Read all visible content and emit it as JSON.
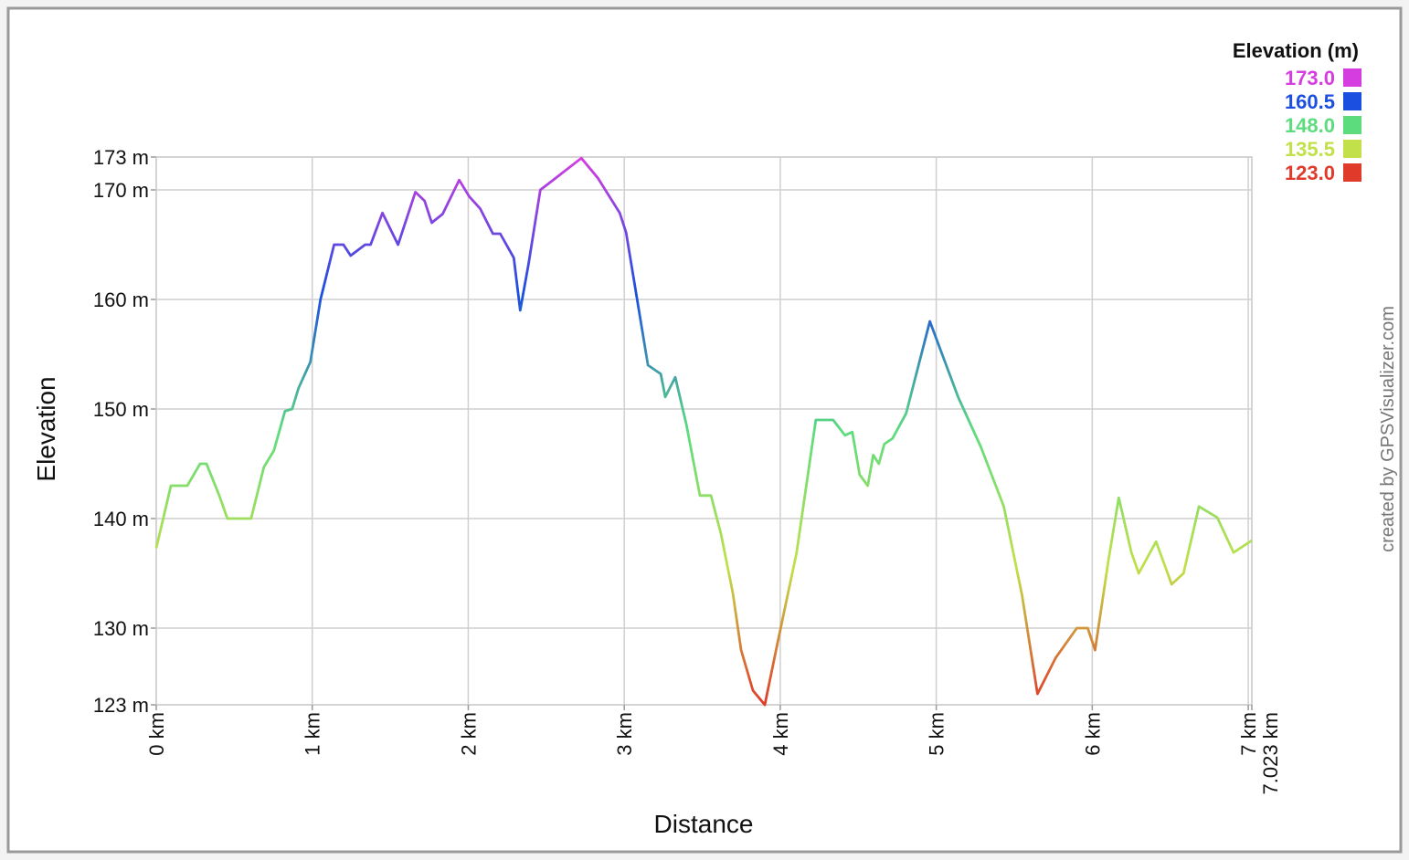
{
  "chart_data": {
    "type": "line",
    "x_label": "Distance",
    "y_label": "Elevation",
    "credit": "created by GPSVisualizer.com",
    "legend_title": "Elevation (m)",
    "color_scale": [
      {
        "value": 173,
        "label": "173.0",
        "color": "#d63de0"
      },
      {
        "value": 160.5,
        "label": "160.5",
        "color": "#1a4fe0"
      },
      {
        "value": 148,
        "label": "148.0",
        "color": "#5ddc7e"
      },
      {
        "value": 135.5,
        "label": "135.5",
        "color": "#c2e04a"
      },
      {
        "value": 123,
        "label": "123.0",
        "color": "#e03a2a"
      }
    ],
    "xlim": [
      0,
      7.023
    ],
    "ylim": [
      123,
      173
    ],
    "xticks": [
      {
        "value": 0,
        "label": "0 km"
      },
      {
        "value": 1,
        "label": "1 km"
      },
      {
        "value": 2,
        "label": "2 km"
      },
      {
        "value": 3,
        "label": "3 km"
      },
      {
        "value": 4,
        "label": "4 km"
      },
      {
        "value": 5,
        "label": "5 km"
      },
      {
        "value": 6,
        "label": "6 km"
      },
      {
        "value": 7,
        "label": "7 km"
      },
      {
        "value": 7.023,
        "label": "7.023 km"
      }
    ],
    "yticks": [
      {
        "value": 123,
        "label": "123 m"
      },
      {
        "value": 130,
        "label": "130 m"
      },
      {
        "value": 140,
        "label": "140 m"
      },
      {
        "value": 150,
        "label": "150 m"
      },
      {
        "value": 160,
        "label": "160 m"
      },
      {
        "value": 170,
        "label": "170 m"
      },
      {
        "value": 173,
        "label": "173 m"
      }
    ],
    "grid": true,
    "x": [
      0,
      0.094,
      0.199,
      0.281,
      0.322,
      0.404,
      0.456,
      0.608,
      0.69,
      0.754,
      0.825,
      0.871,
      0.912,
      0.988,
      1.053,
      1.14,
      1.2,
      1.246,
      1.339,
      1.374,
      1.45,
      1.55,
      1.661,
      1.72,
      1.766,
      1.836,
      1.942,
      2.006,
      2.076,
      2.158,
      2.205,
      2.292,
      2.333,
      2.386,
      2.462,
      2.526,
      2.725,
      2.83,
      2.971,
      3.012,
      3.152,
      3.234,
      3.263,
      3.327,
      3.398,
      3.485,
      3.556,
      3.62,
      3.696,
      3.749,
      3.825,
      3.901,
      3.982,
      4.105,
      4.228,
      4.339,
      4.415,
      4.462,
      4.509,
      4.561,
      4.596,
      4.632,
      4.667,
      4.719,
      4.807,
      4.959,
      5.14,
      5.287,
      5.433,
      5.55,
      5.649,
      5.766,
      5.901,
      5.971,
      6.018,
      6.105,
      6.17,
      6.251,
      6.298,
      6.409,
      6.509,
      6.585,
      6.684,
      6.801,
      6.906,
      7.023
    ],
    "series": [
      {
        "name": "Elevation",
        "values": [
          137.3,
          143,
          143,
          145,
          145,
          142.1,
          140,
          140,
          144.7,
          146.2,
          149.8,
          150,
          151.9,
          154.3,
          160,
          165,
          165,
          164,
          165,
          165,
          167.9,
          165,
          169.8,
          169,
          167,
          167.8,
          170.9,
          169.4,
          168.3,
          166,
          166,
          163.8,
          159,
          163.2,
          170,
          170.7,
          172.9,
          171.1,
          167.9,
          166.1,
          154,
          153.2,
          151.1,
          152.9,
          148.6,
          142.1,
          142.1,
          138.6,
          133.2,
          128,
          124.3,
          123,
          128.6,
          136.9,
          149,
          149,
          147.6,
          147.9,
          144,
          143,
          145.8,
          145,
          146.8,
          147.3,
          149.6,
          158,
          151.1,
          146.5,
          141.1,
          133,
          124,
          127.3,
          130,
          130,
          128,
          136.3,
          141.9,
          136.9,
          135,
          137.9,
          134,
          135,
          141.1,
          140.1,
          136.9,
          138
        ]
      }
    ]
  }
}
